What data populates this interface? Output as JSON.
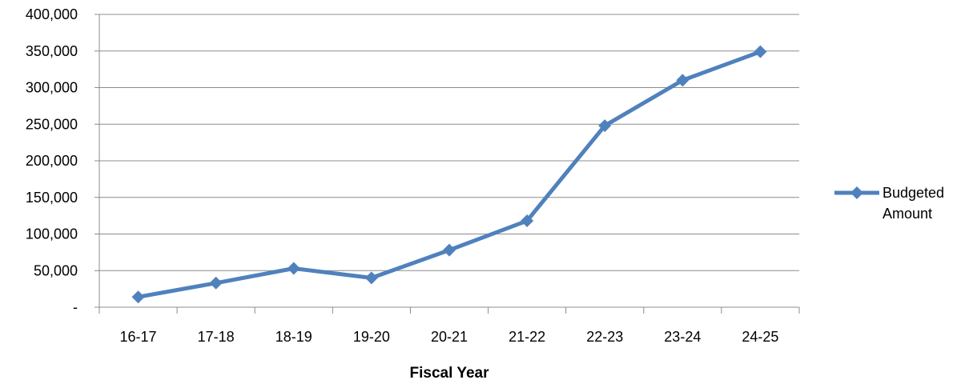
{
  "chart_data": {
    "type": "line",
    "title": "",
    "xlabel": "Fiscal Year",
    "ylabel": "",
    "ylim": [
      0,
      400000
    ],
    "yticks": [
      0,
      50000,
      100000,
      150000,
      200000,
      250000,
      300000,
      350000,
      400000
    ],
    "ytick_labels": [
      "-",
      "50,000",
      "100,000",
      "150,000",
      "200,000",
      "250,000",
      "300,000",
      "350,000",
      "400,000"
    ],
    "grid": true,
    "legend_position": "right",
    "categories": [
      "16-17",
      "17-18",
      "18-19",
      "19-20",
      "20-21",
      "21-22",
      "22-23",
      "23-24",
      "24-25"
    ],
    "series": [
      {
        "name": "Budgeted Amount",
        "name_lines": [
          "Budgeted",
          "Amount"
        ],
        "color": "#4F81BD",
        "marker": "diamond",
        "values": [
          14000,
          33000,
          53000,
          40000,
          78000,
          118000,
          248000,
          310000,
          349000
        ]
      }
    ]
  }
}
